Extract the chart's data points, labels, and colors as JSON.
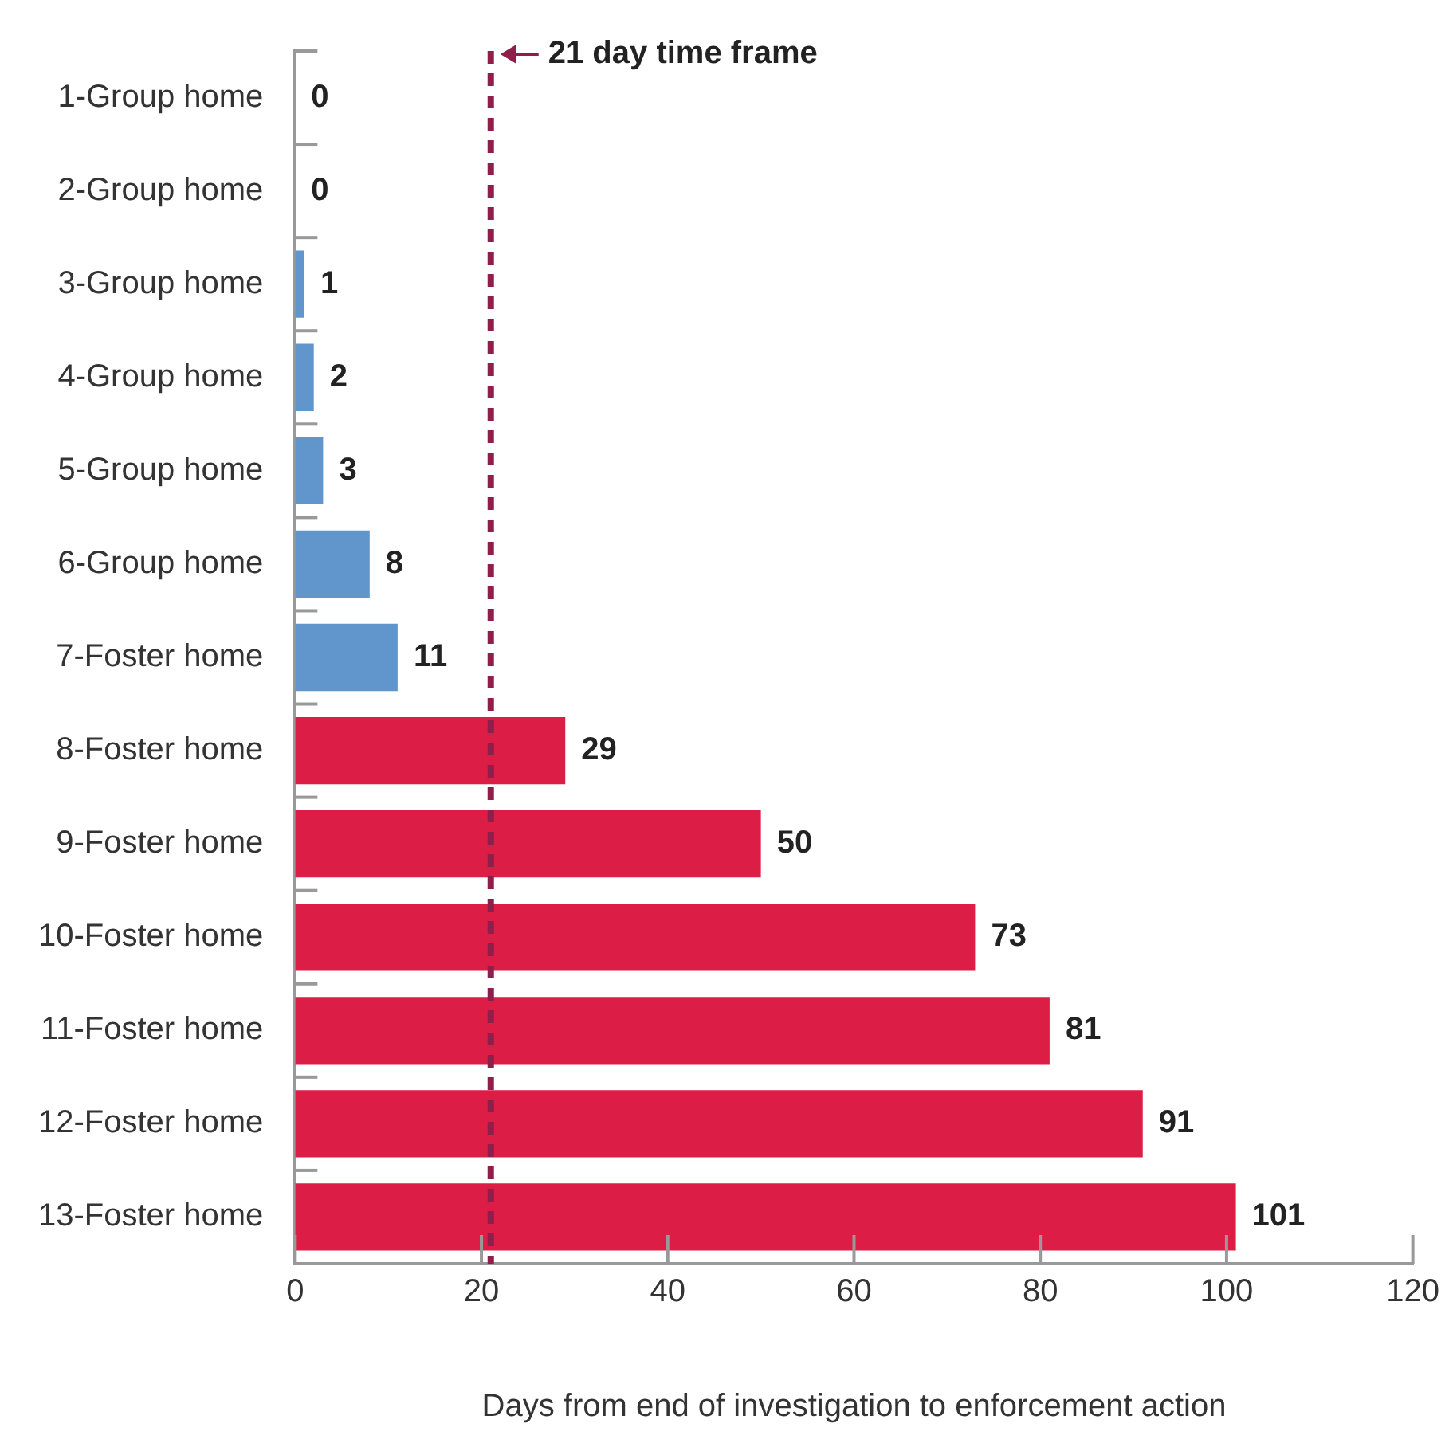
{
  "chart_data": {
    "type": "bar",
    "orientation": "horizontal",
    "xlabel": "Days from end of investigation to enforcement action",
    "categories": [
      "1-Group home",
      "2-Group home",
      "3-Group home",
      "4-Group home",
      "5-Group home",
      "6-Group home",
      "7-Foster home",
      "8-Foster home",
      "9-Foster home",
      "10-Foster home",
      "11-Foster home",
      "12-Foster home",
      "13-Foster home"
    ],
    "values": [
      0,
      0,
      1,
      2,
      3,
      8,
      11,
      29,
      50,
      73,
      81,
      91,
      101
    ],
    "colors": [
      "#6096cc",
      "#6096cc",
      "#6096cc",
      "#6096cc",
      "#6096cc",
      "#6096cc",
      "#6096cc",
      "#dc1e46",
      "#dc1e46",
      "#dc1e46",
      "#dc1e46",
      "#dc1e46",
      "#dc1e46"
    ],
    "xlim": [
      0,
      120
    ],
    "xticks": [
      0,
      20,
      40,
      60,
      80,
      100,
      120
    ],
    "ref_lines": [
      {
        "axis": "x",
        "value": 21,
        "label": "21 day time frame",
        "color": "#8e1f4a",
        "line_style": "dashed"
      }
    ],
    "data_labels": true,
    "grid": false,
    "legend": false
  }
}
